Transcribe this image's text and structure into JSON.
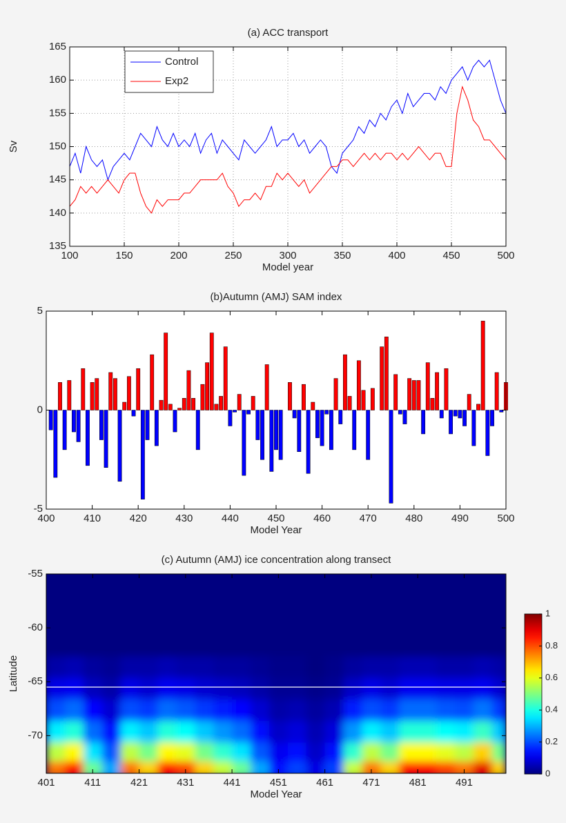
{
  "chart_data": [
    {
      "type": "line",
      "title": "(a) ACC transport",
      "x_label": "Model year",
      "y_label": "Sv",
      "x": [
        100,
        105,
        110,
        115,
        120,
        125,
        130,
        135,
        140,
        145,
        150,
        155,
        160,
        165,
        170,
        175,
        180,
        185,
        190,
        195,
        200,
        205,
        210,
        215,
        220,
        225,
        230,
        235,
        240,
        245,
        250,
        255,
        260,
        265,
        270,
        275,
        280,
        285,
        290,
        295,
        300,
        305,
        310,
        315,
        320,
        325,
        330,
        335,
        340,
        345,
        350,
        355,
        360,
        365,
        370,
        375,
        380,
        385,
        390,
        395,
        400,
        405,
        410,
        415,
        420,
        425,
        430,
        435,
        440,
        445,
        450,
        455,
        460,
        465,
        470,
        475,
        480,
        485,
        490,
        495,
        500
      ],
      "series": [
        {
          "name": "Control",
          "color": "#0000ff",
          "values": [
            147,
            149,
            146,
            150,
            148,
            147,
            148,
            145,
            147,
            148,
            149,
            148,
            150,
            152,
            151,
            150,
            153,
            151,
            150,
            152,
            150,
            151,
            150,
            152,
            149,
            151,
            152,
            149,
            151,
            150,
            149,
            148,
            151,
            150,
            149,
            150,
            151,
            153,
            150,
            151,
            151,
            152,
            150,
            151,
            149,
            150,
            151,
            150,
            147,
            146,
            149,
            150,
            151,
            153,
            152,
            154,
            153,
            155,
            154,
            156,
            157,
            155,
            158,
            156,
            157,
            158,
            158,
            157,
            159,
            158,
            160,
            161,
            162,
            160,
            162,
            163,
            162,
            163,
            160,
            157,
            155
          ]
        },
        {
          "name": "Exp2",
          "color": "#ff0000",
          "values": [
            141,
            142,
            144,
            143,
            144,
            143,
            144,
            145,
            144,
            143,
            145,
            146,
            146,
            143,
            141,
            140,
            142,
            141,
            142,
            142,
            142,
            143,
            143,
            144,
            145,
            145,
            145,
            145,
            146,
            144,
            143,
            141,
            142,
            142,
            143,
            142,
            144,
            144,
            146,
            145,
            146,
            145,
            144,
            145,
            143,
            144,
            145,
            146,
            147,
            147,
            148,
            148,
            147,
            148,
            149,
            148,
            149,
            148,
            149,
            149,
            148,
            149,
            148,
            149,
            150,
            149,
            148,
            149,
            149,
            147,
            147,
            155,
            159,
            157,
            154,
            153,
            151,
            151,
            150,
            149,
            148
          ]
        }
      ],
      "xlim": [
        100,
        500
      ],
      "xticks": [
        100,
        150,
        200,
        250,
        300,
        350,
        400,
        450,
        500
      ],
      "ylim": [
        135,
        165
      ],
      "yticks": [
        135,
        140,
        145,
        150,
        155,
        160,
        165
      ],
      "grid": true,
      "legend": "upper left"
    },
    {
      "type": "bar",
      "title": "(b)Autumn (AMJ) SAM index",
      "x_label": "Model Year",
      "x": [
        401,
        402,
        403,
        404,
        405,
        406,
        407,
        408,
        409,
        410,
        411,
        412,
        413,
        414,
        415,
        416,
        417,
        418,
        419,
        420,
        421,
        422,
        423,
        424,
        425,
        426,
        427,
        428,
        429,
        430,
        431,
        432,
        433,
        434,
        435,
        436,
        437,
        438,
        439,
        440,
        441,
        442,
        443,
        444,
        445,
        446,
        447,
        448,
        449,
        450,
        451,
        452,
        453,
        454,
        455,
        456,
        457,
        458,
        459,
        460,
        461,
        462,
        463,
        464,
        465,
        466,
        467,
        468,
        469,
        470,
        471,
        472,
        473,
        474,
        475,
        476,
        477,
        478,
        479,
        480,
        481,
        482,
        483,
        484,
        485,
        486,
        487,
        488,
        489,
        490,
        491,
        492,
        493,
        494,
        495,
        496,
        497,
        498,
        499,
        500
      ],
      "values": [
        -1.0,
        -3.4,
        1.4,
        -2.0,
        1.5,
        -1.1,
        -1.6,
        2.1,
        -2.8,
        1.4,
        1.6,
        -1.5,
        -2.9,
        1.9,
        1.6,
        -3.6,
        0.4,
        1.7,
        -0.3,
        2.1,
        -4.5,
        -1.5,
        2.8,
        -1.8,
        0.5,
        3.9,
        0.3,
        -1.1,
        0.1,
        0.6,
        2.0,
        0.6,
        -2.0,
        1.3,
        2.4,
        3.9,
        0.3,
        0.7,
        3.2,
        -0.8,
        -0.1,
        0.8,
        -3.3,
        -0.2,
        0.7,
        -1.5,
        -2.5,
        2.3,
        -3.1,
        -2.0,
        -2.5,
        0,
        1.4,
        -0.4,
        -2.1,
        1.3,
        -3.2,
        0.4,
        -1.4,
        -1.8,
        -0.2,
        -2.0,
        1.6,
        -0.7,
        2.8,
        0.7,
        -2.0,
        2.5,
        1.0,
        -2.5,
        1.1,
        0,
        3.2,
        3.7,
        -4.7,
        1.8,
        -0.2,
        -0.7,
        1.6,
        1.5,
        1.5,
        -1.2,
        2.4,
        0.6,
        1.9,
        -0.4,
        2.1,
        -1.2,
        -0.3,
        -0.4,
        -0.8,
        0.8,
        -1.8,
        0.3,
        4.5,
        -2.3,
        -0.8,
        1.9,
        -0.1,
        1.4
      ],
      "positive_color": "#ff0000",
      "negative_color": "#0000ff",
      "xlim": [
        400,
        500
      ],
      "xticks": [
        400,
        410,
        420,
        430,
        440,
        450,
        460,
        470,
        480,
        490,
        500
      ],
      "ylim": [
        -5,
        5
      ],
      "yticks": [
        -5,
        0,
        5
      ],
      "grid": false
    },
    {
      "type": "heatmap",
      "title": "(c) Autumn (AMJ) ice concentration along transect",
      "x_label": "Model Year",
      "y_label": "Latitude",
      "x": [
        401,
        405,
        409,
        413,
        417,
        421,
        425,
        429,
        433,
        437,
        441,
        445,
        449,
        453,
        457,
        461,
        465,
        469,
        473,
        477,
        481,
        485,
        489,
        493,
        497
      ],
      "y": [
        -73.5,
        -72,
        -70,
        -68,
        -66,
        -64
      ],
      "z": [
        [
          0.76,
          0.56,
          0.36,
          0.2,
          0.1,
          0.04
        ],
        [
          0.86,
          0.63,
          0.41,
          0.23,
          0.11,
          0.05
        ],
        [
          0.48,
          0.35,
          0.23,
          0.13,
          0.06,
          0.03
        ],
        [
          0.29,
          0.21,
          0.14,
          0.08,
          0.04,
          0.02
        ],
        [
          0.76,
          0.56,
          0.36,
          0.2,
          0.1,
          0.04
        ],
        [
          0.67,
          0.49,
          0.32,
          0.18,
          0.08,
          0.04
        ],
        [
          0.86,
          0.63,
          0.41,
          0.23,
          0.11,
          0.05
        ],
        [
          0.81,
          0.6,
          0.38,
          0.21,
          0.1,
          0.04
        ],
        [
          0.67,
          0.49,
          0.32,
          0.18,
          0.08,
          0.04
        ],
        [
          0.57,
          0.42,
          0.27,
          0.15,
          0.07,
          0.03
        ],
        [
          0.48,
          0.35,
          0.23,
          0.13,
          0.06,
          0.03
        ],
        [
          0.29,
          0.21,
          0.14,
          0.08,
          0.04,
          0.02
        ],
        [
          0.14,
          0.11,
          0.07,
          0.04,
          0.02,
          0.01
        ],
        [
          0.19,
          0.14,
          0.09,
          0.05,
          0.02,
          0.01
        ],
        [
          0.1,
          0.07,
          0.05,
          0.03,
          0.01,
          0
        ],
        [
          0.19,
          0.14,
          0.09,
          0.05,
          0.02,
          0.01
        ],
        [
          0.57,
          0.42,
          0.27,
          0.15,
          0.07,
          0.03
        ],
        [
          0.76,
          0.56,
          0.36,
          0.2,
          0.1,
          0.04
        ],
        [
          0.67,
          0.49,
          0.32,
          0.18,
          0.08,
          0.04
        ],
        [
          0.86,
          0.63,
          0.41,
          0.23,
          0.11,
          0.05
        ],
        [
          0.86,
          0.63,
          0.41,
          0.23,
          0.11,
          0.05
        ],
        [
          0.81,
          0.6,
          0.38,
          0.21,
          0.1,
          0.04
        ],
        [
          0.76,
          0.56,
          0.36,
          0.2,
          0.1,
          0.04
        ],
        [
          0.9,
          0.67,
          0.43,
          0.24,
          0.11,
          0.05
        ],
        [
          0.67,
          0.49,
          0.32,
          0.18,
          0.08,
          0.04
        ]
      ],
      "xlim": [
        401,
        500
      ],
      "xticks": [
        401,
        411,
        421,
        431,
        441,
        451,
        461,
        471,
        481,
        491
      ],
      "ylim": [
        -73.5,
        -55
      ],
      "yticks": [
        -70,
        -65,
        -60,
        -55
      ],
      "zlim": [
        0,
        1
      ],
      "colorbar_ticks": [
        0,
        0.2,
        0.4,
        0.6,
        0.8,
        1
      ],
      "colormap": "jet",
      "hline": -65.5,
      "hline_color": "#ffffff",
      "grid": false
    }
  ]
}
